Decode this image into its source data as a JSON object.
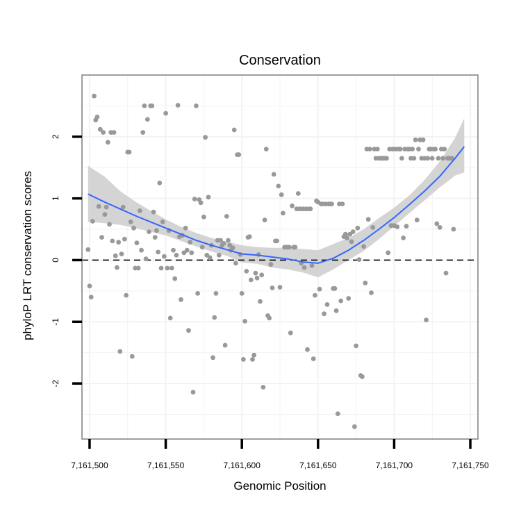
{
  "chart_data": {
    "type": "scatter",
    "title": "Conservation",
    "xlabel": "Genomic Position",
    "ylabel": "phyloP LRT conservation scores",
    "xlim": [
      7161495,
      7161755
    ],
    "ylim": [
      -2.9,
      3.0
    ],
    "x_ticks": [
      7161500,
      7161550,
      7161600,
      7161650,
      7161700,
      7161750
    ],
    "x_tick_labels": [
      "7,161,500",
      "7,161,550",
      "7,161,600",
      "7,161,650",
      "7,161,700",
      "7,161,750"
    ],
    "y_ticks": [
      -2,
      -1,
      0,
      1,
      2
    ],
    "y_tick_labels": [
      "-2",
      "-1",
      "0",
      "1",
      "2"
    ],
    "grid": true,
    "reference_line": {
      "y": 0,
      "style": "dashed"
    },
    "colors": {
      "points": "#999999",
      "smooth": "#3366ff",
      "band": "#cccccc",
      "frame": "#7f7f7f",
      "grid": "#f3f3f3"
    },
    "points": [
      [
        7161499,
        0.17
      ],
      [
        7161500,
        -0.42
      ],
      [
        7161501,
        -0.6
      ],
      [
        7161502,
        0.63
      ],
      [
        7161503,
        2.66
      ],
      [
        7161504,
        2.27
      ],
      [
        7161505,
        2.32
      ],
      [
        7161506,
        0.87
      ],
      [
        7161507,
        2.12
      ],
      [
        7161508,
        0.37
      ],
      [
        7161509,
        2.07
      ],
      [
        7161510,
        0.74
      ],
      [
        7161511,
        0.86
      ],
      [
        7161512,
        1.91
      ],
      [
        7161513,
        0.58
      ],
      [
        7161514,
        2.07
      ],
      [
        7161515,
        0.31
      ],
      [
        7161516,
        2.07
      ],
      [
        7161517,
        0.07
      ],
      [
        7161518,
        -0.12
      ],
      [
        7161519,
        0.29
      ],
      [
        7161520,
        -1.48
      ],
      [
        7161521,
        0.1
      ],
      [
        7161522,
        0.86
      ],
      [
        7161523,
        0.34
      ],
      [
        7161524,
        -0.57
      ],
      [
        7161525,
        1.75
      ],
      [
        7161526,
        1.75
      ],
      [
        7161527,
        0.62
      ],
      [
        7161528,
        -1.56
      ],
      [
        7161529,
        0.52
      ],
      [
        7161530,
        -0.13
      ],
      [
        7161531,
        0.28
      ],
      [
        7161532,
        -0.13
      ],
      [
        7161533,
        0.8
      ],
      [
        7161534,
        0.16
      ],
      [
        7161535,
        2.07
      ],
      [
        7161536,
        2.5
      ],
      [
        7161537,
        0.02
      ],
      [
        7161538,
        2.28
      ],
      [
        7161539,
        0.46
      ],
      [
        7161540,
        2.5
      ],
      [
        7161541,
        2.5
      ],
      [
        7161542,
        0.78
      ],
      [
        7161543,
        0.37
      ],
      [
        7161544,
        0.48
      ],
      [
        7161545,
        0.13
      ],
      [
        7161546,
        1.25
      ],
      [
        7161547,
        -0.13
      ],
      [
        7161548,
        0.62
      ],
      [
        7161549,
        0.06
      ],
      [
        7161550,
        2.38
      ],
      [
        7161551,
        -0.13
      ],
      [
        7161552,
        0.48
      ],
      [
        7161553,
        -0.94
      ],
      [
        7161554,
        -0.13
      ],
      [
        7161555,
        0.16
      ],
      [
        7161556,
        -0.3
      ],
      [
        7161557,
        0.08
      ],
      [
        7161558,
        2.51
      ],
      [
        7161559,
        0.38
      ],
      [
        7161560,
        -0.64
      ],
      [
        7161561,
        0.4
      ],
      [
        7161562,
        0.12
      ],
      [
        7161563,
        0.52
      ],
      [
        7161564,
        0.16
      ],
      [
        7161565,
        -1.14
      ],
      [
        7161566,
        0.29
      ],
      [
        7161567,
        0.12
      ],
      [
        7161568,
        -2.14
      ],
      [
        7161569,
        0.99
      ],
      [
        7161570,
        2.5
      ],
      [
        7161571,
        -0.54
      ],
      [
        7161572,
        0.98
      ],
      [
        7161573,
        0.93
      ],
      [
        7161574,
        0.21
      ],
      [
        7161575,
        0.7
      ],
      [
        7161576,
        1.99
      ],
      [
        7161577,
        0.08
      ],
      [
        7161578,
        1.02
      ],
      [
        7161579,
        0.04
      ],
      [
        7161580,
        0.24
      ],
      [
        7161581,
        -1.58
      ],
      [
        7161582,
        -0.93
      ],
      [
        7161583,
        -0.54
      ],
      [
        7161584,
        0.32
      ],
      [
        7161585,
        0.08
      ],
      [
        7161586,
        0.32
      ],
      [
        7161587,
        0.24
      ],
      [
        7161588,
        0.27
      ],
      [
        7161589,
        -1.38
      ],
      [
        7161590,
        0.71
      ],
      [
        7161591,
        0.32
      ],
      [
        7161592,
        0.24
      ],
      [
        7161593,
        0.16
      ],
      [
        7161594,
        0.2
      ],
      [
        7161595,
        2.11
      ],
      [
        7161596,
        -0.05
      ],
      [
        7161597,
        1.71
      ],
      [
        7161598,
        1.71
      ],
      [
        7161599,
        0.09
      ],
      [
        7161600,
        -0.54
      ],
      [
        7161601,
        -1.61
      ],
      [
        7161602,
        -0.99
      ],
      [
        7161603,
        -0.18
      ],
      [
        7161604,
        0.37
      ],
      [
        7161605,
        0.38
      ],
      [
        7161606,
        -0.32
      ],
      [
        7161607,
        -1.61
      ],
      [
        7161608,
        -1.54
      ],
      [
        7161609,
        -0.21
      ],
      [
        7161610,
        -0.29
      ],
      [
        7161611,
        0.09
      ],
      [
        7161612,
        -0.67
      ],
      [
        7161613,
        -0.24
      ],
      [
        7161614,
        -2.06
      ],
      [
        7161615,
        0.65
      ],
      [
        7161616,
        1.8
      ],
      [
        7161617,
        -0.9
      ],
      [
        7161618,
        -0.94
      ],
      [
        7161619,
        -0.07
      ],
      [
        7161620,
        -0.45
      ],
      [
        7161621,
        1.39
      ],
      [
        7161622,
        0.31
      ],
      [
        7161623,
        0.31
      ],
      [
        7161624,
        1.2
      ],
      [
        7161625,
        -0.44
      ],
      [
        7161626,
        1.06
      ],
      [
        7161627,
        0.76
      ],
      [
        7161628,
        0.21
      ],
      [
        7161629,
        0.21
      ],
      [
        7161630,
        0.21
      ],
      [
        7161631,
        0.21
      ],
      [
        7161632,
        -1.18
      ],
      [
        7161633,
        0.88
      ],
      [
        7161634,
        0.21
      ],
      [
        7161635,
        0.21
      ],
      [
        7161636,
        0.83
      ],
      [
        7161637,
        1.08
      ],
      [
        7161638,
        0.83
      ],
      [
        7161639,
        -0.05
      ],
      [
        7161640,
        0.83
      ],
      [
        7161641,
        -0.12
      ],
      [
        7161642,
        0.83
      ],
      [
        7161643,
        -1.45
      ],
      [
        7161644,
        0.83
      ],
      [
        7161645,
        0.83
      ],
      [
        7161646,
        -0.09
      ],
      [
        7161647,
        -1.6
      ],
      [
        7161648,
        -0.57
      ],
      [
        7161649,
        0.96
      ],
      [
        7161650,
        0.94
      ],
      [
        7161651,
        -0.47
      ],
      [
        7161652,
        0.91
      ],
      [
        7161653,
        0.91
      ],
      [
        7161654,
        -0.87
      ],
      [
        7161655,
        0.91
      ],
      [
        7161656,
        -0.72
      ],
      [
        7161657,
        0.91
      ],
      [
        7161658,
        0.91
      ],
      [
        7161659,
        0.91
      ],
      [
        7161660,
        -0.46
      ],
      [
        7161661,
        -0.46
      ],
      [
        7161662,
        -0.82
      ],
      [
        7161663,
        -2.49
      ],
      [
        7161664,
        0.91
      ],
      [
        7161665,
        -0.66
      ],
      [
        7161666,
        0.91
      ],
      [
        7161667,
        0.38
      ],
      [
        7161668,
        0.42
      ],
      [
        7161669,
        0.36
      ],
      [
        7161670,
        -0.62
      ],
      [
        7161671,
        0.42
      ],
      [
        7161672,
        0.3
      ],
      [
        7161673,
        0.46
      ],
      [
        7161674,
        -2.7
      ],
      [
        7161675,
        -1.39
      ],
      [
        7161676,
        0.52
      ],
      [
        7161677,
        0.01
      ],
      [
        7161678,
        -1.87
      ],
      [
        7161679,
        -1.89
      ],
      [
        7161680,
        0.22
      ],
      [
        7161681,
        -0.37
      ],
      [
        7161682,
        1.8
      ],
      [
        7161683,
        0.66
      ],
      [
        7161684,
        1.8
      ],
      [
        7161685,
        -0.53
      ],
      [
        7161686,
        0.53
      ],
      [
        7161687,
        1.8
      ],
      [
        7161688,
        1.65
      ],
      [
        7161689,
        1.8
      ],
      [
        7161690,
        1.65
      ],
      [
        7161691,
        1.65
      ],
      [
        7161692,
        1.65
      ],
      [
        7161693,
        1.65
      ],
      [
        7161694,
        1.65
      ],
      [
        7161695,
        1.65
      ],
      [
        7161696,
        0.12
      ],
      [
        7161697,
        1.8
      ],
      [
        7161698,
        0.56
      ],
      [
        7161699,
        1.8
      ],
      [
        7161700,
        0.56
      ],
      [
        7161701,
        1.8
      ],
      [
        7161702,
        0.54
      ],
      [
        7161703,
        1.8
      ],
      [
        7161704,
        1.8
      ],
      [
        7161705,
        1.65
      ],
      [
        7161706,
        0.36
      ],
      [
        7161707,
        1.8
      ],
      [
        7161708,
        0.55
      ],
      [
        7161709,
        1.8
      ],
      [
        7161710,
        1.8
      ],
      [
        7161711,
        1.65
      ],
      [
        7161712,
        1.8
      ],
      [
        7161713,
        1.65
      ],
      [
        7161714,
        1.95
      ],
      [
        7161715,
        0.65
      ],
      [
        7161716,
        1.8
      ],
      [
        7161717,
        1.95
      ],
      [
        7161718,
        1.65
      ],
      [
        7161719,
        1.95
      ],
      [
        7161720,
        1.65
      ],
      [
        7161721,
        -0.97
      ],
      [
        7161722,
        1.65
      ],
      [
        7161723,
        1.8
      ],
      [
        7161724,
        1.8
      ],
      [
        7161725,
        1.65
      ],
      [
        7161726,
        1.8
      ],
      [
        7161727,
        1.8
      ],
      [
        7161728,
        0.59
      ],
      [
        7161729,
        1.65
      ],
      [
        7161730,
        0.53
      ],
      [
        7161731,
        1.8
      ],
      [
        7161732,
        1.65
      ],
      [
        7161733,
        1.8
      ],
      [
        7161734,
        -0.21
      ],
      [
        7161735,
        1.65
      ],
      [
        7161736,
        1.65
      ],
      [
        7161737,
        1.65
      ],
      [
        7161738,
        1.65
      ],
      [
        7161739,
        0.5
      ]
    ],
    "smooth_x": [
      7161499,
      7161510,
      7161520,
      7161530,
      7161540,
      7161550,
      7161560,
      7161570,
      7161580,
      7161590,
      7161600,
      7161610,
      7161620,
      7161630,
      7161640,
      7161650,
      7161660,
      7161670,
      7161680,
      7161690,
      7161700,
      7161710,
      7161720,
      7161730,
      7161740,
      7161746
    ],
    "smooth_y": [
      1.07,
      0.94,
      0.83,
      0.72,
      0.62,
      0.52,
      0.42,
      0.32,
      0.24,
      0.17,
      0.1,
      0.08,
      0.05,
      0.02,
      -0.03,
      -0.05,
      0.03,
      0.16,
      0.32,
      0.5,
      0.69,
      0.9,
      1.12,
      1.36,
      1.65,
      1.84
    ],
    "smooth_lower": [
      0.62,
      0.6,
      0.57,
      0.52,
      0.46,
      0.4,
      0.31,
      0.22,
      0.14,
      0.07,
      -0.04,
      -0.06,
      -0.12,
      -0.15,
      -0.2,
      -0.28,
      -0.15,
      0.0,
      0.15,
      0.34,
      0.55,
      0.76,
      0.97,
      1.18,
      1.37,
      1.42
    ],
    "smooth_upper": [
      1.53,
      1.35,
      1.12,
      0.95,
      0.8,
      0.66,
      0.54,
      0.44,
      0.36,
      0.3,
      0.24,
      0.21,
      0.2,
      0.2,
      0.18,
      0.16,
      0.26,
      0.36,
      0.5,
      0.68,
      0.85,
      1.05,
      1.3,
      1.6,
      1.98,
      2.3
    ]
  }
}
